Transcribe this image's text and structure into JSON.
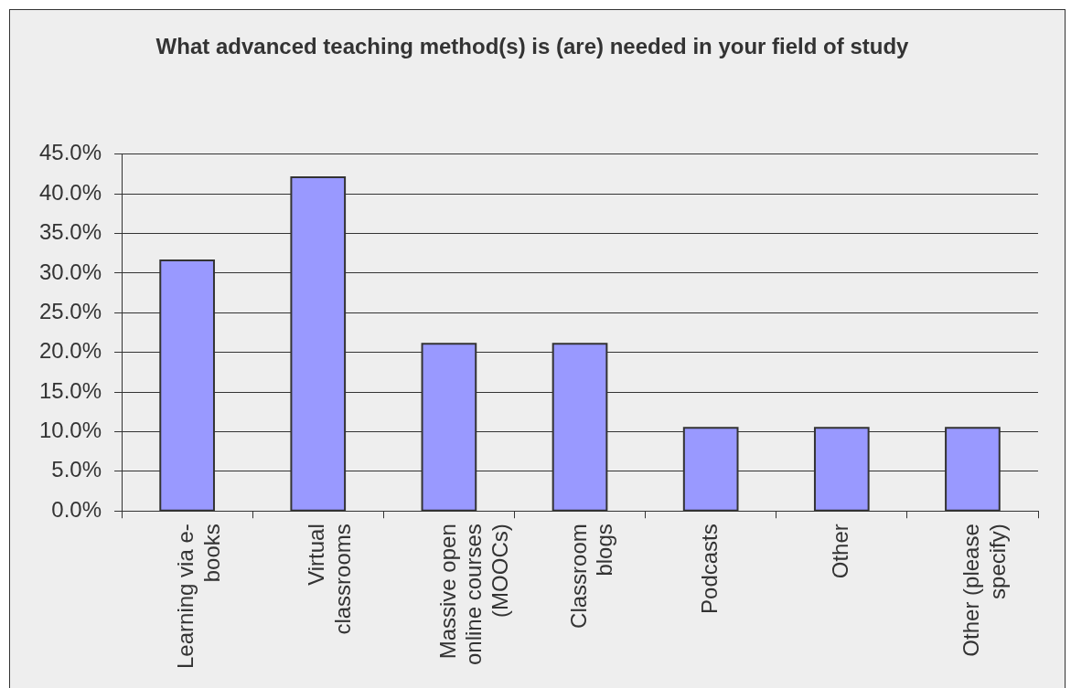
{
  "chart_data": {
    "type": "bar",
    "title": "What advanced teaching method(s) is (are) needed in your field of study",
    "categories": [
      "Learning via e-books",
      "Virtual classrooms",
      "Massive open online courses (MOOCs)",
      "Classroom blogs",
      "Podcasts",
      "Other",
      "Other (please specify)"
    ],
    "values": [
      31.6,
      42.1,
      21.1,
      21.1,
      10.5,
      10.5,
      10.5
    ],
    "color": "#9999ff",
    "ylim": [
      0,
      45
    ],
    "yticks": [
      {
        "value": 0,
        "label": "0.0%"
      },
      {
        "value": 5,
        "label": "5.0%"
      },
      {
        "value": 10,
        "label": "10.0%"
      },
      {
        "value": 15,
        "label": "15.0%"
      },
      {
        "value": 20,
        "label": "20.0%"
      },
      {
        "value": 25,
        "label": "25.0%"
      },
      {
        "value": 30,
        "label": "30.0%"
      },
      {
        "value": 35,
        "label": "35.0%"
      },
      {
        "value": 40,
        "label": "40.0%"
      },
      {
        "value": 45,
        "label": "45.0%"
      }
    ],
    "grid": "y"
  }
}
